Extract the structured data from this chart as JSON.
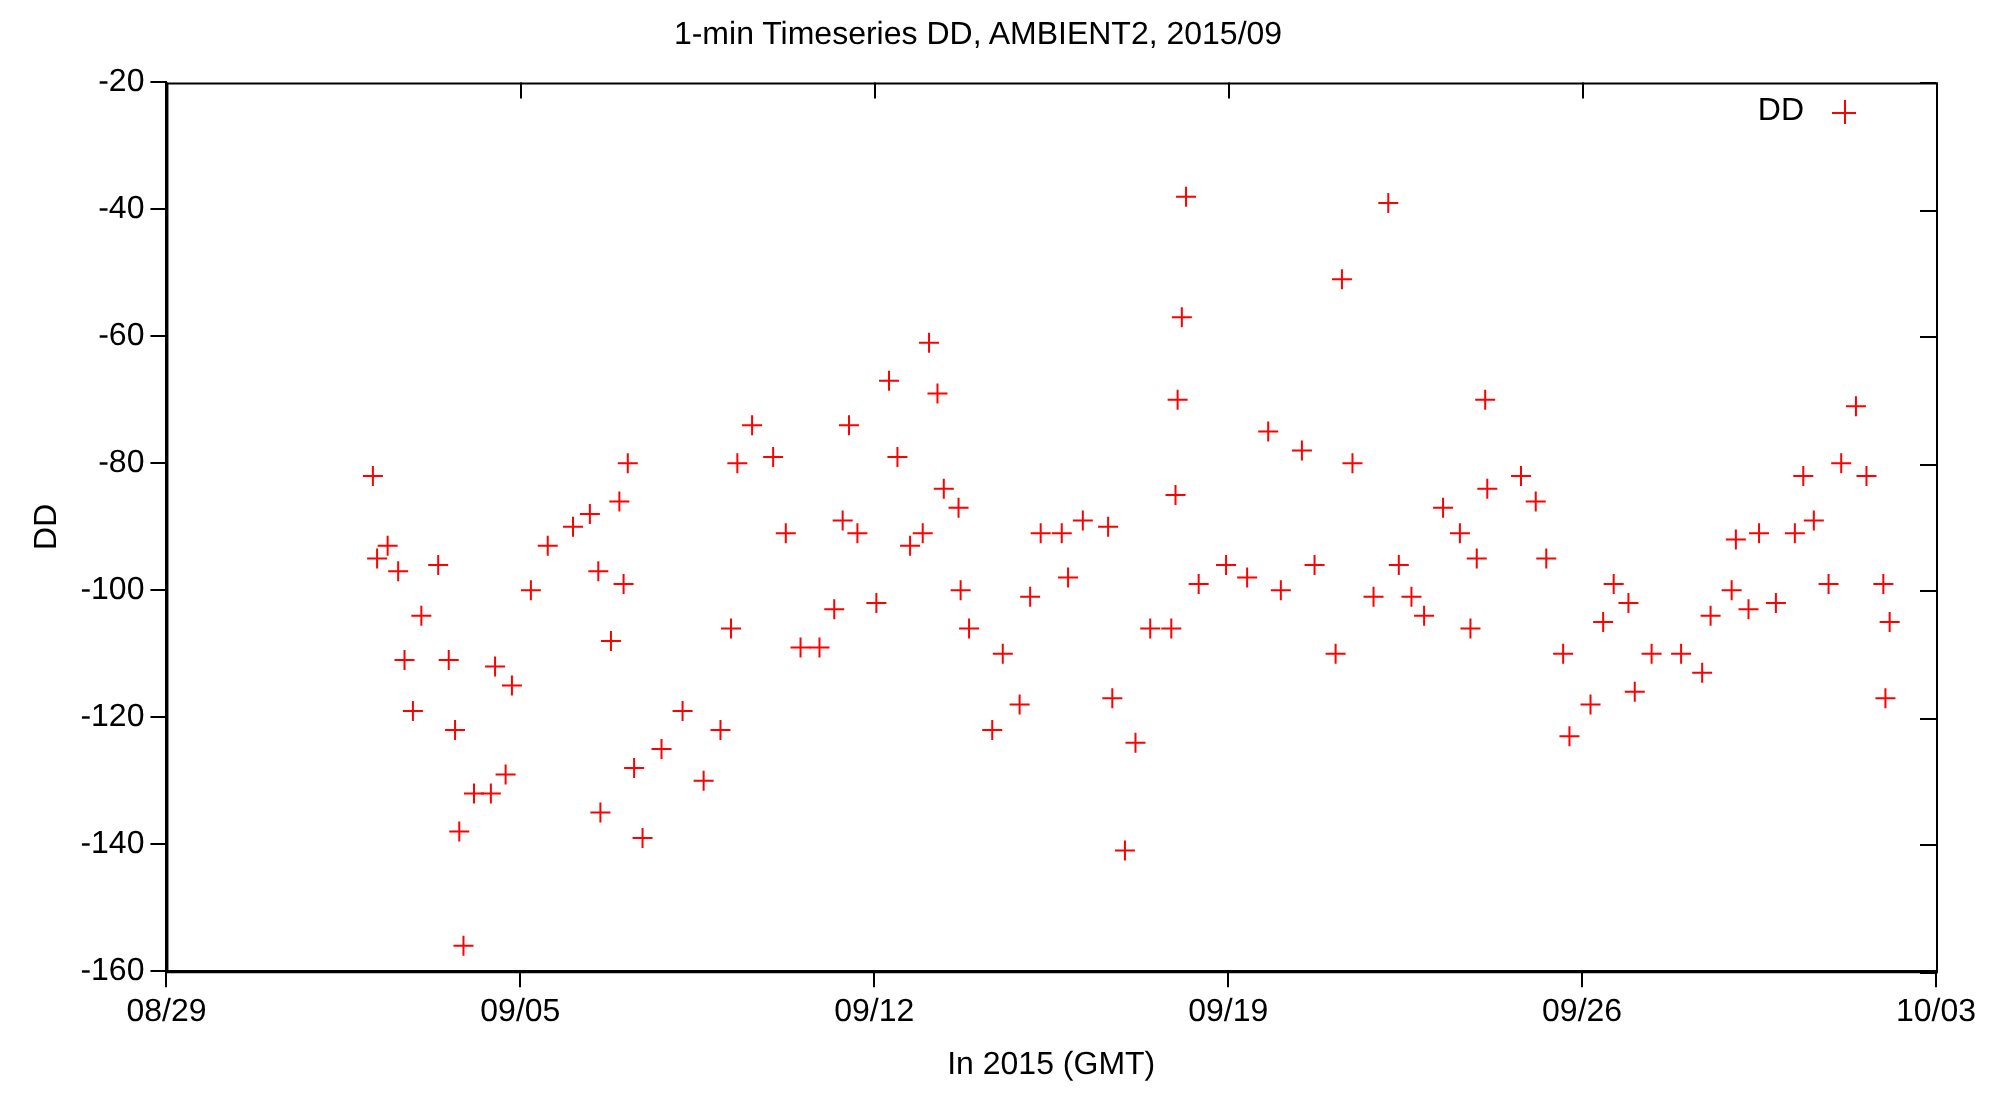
{
  "chart_data": {
    "type": "scatter",
    "title": "1-min Timeseries DD, AMBIENT2, 2015/09",
    "xlabel": "In 2015 (GMT)",
    "ylabel": "DD",
    "xlim": [
      "2015-08-29",
      "2015-10-03"
    ],
    "xticks": [
      {
        "value": "2015-08-29",
        "label": "08/29"
      },
      {
        "value": "2015-09-05",
        "label": "09/05"
      },
      {
        "value": "2015-09-12",
        "label": "09/12"
      },
      {
        "value": "2015-09-19",
        "label": "09/19"
      },
      {
        "value": "2015-09-26",
        "label": "09/26"
      },
      {
        "value": "2015-10-03",
        "label": "10/03"
      }
    ],
    "ylim": [
      -160,
      -20
    ],
    "yticks": [
      -160,
      -140,
      -120,
      -100,
      -80,
      -60,
      -40,
      -20
    ],
    "grid": false,
    "legend": "top right",
    "marker": "cross",
    "series": [
      {
        "name": "DD",
        "color": "#ff0000",
        "x": [
          "2015-09-02T02:00",
          "2015-09-02T04:00",
          "2015-09-02T09:00",
          "2015-09-02T14:00",
          "2015-09-02T17:00",
          "2015-09-02T21:00",
          "2015-09-03T01:00",
          "2015-09-03T09:00",
          "2015-09-03T14:00",
          "2015-09-03T17:00",
          "2015-09-03T19:00",
          "2015-09-03T21:00",
          "2015-09-04T02:00",
          "2015-09-04T10:00",
          "2015-09-04T12:00",
          "2015-09-04T17:00",
          "2015-09-04T20:00",
          "2015-09-05T05:00",
          "2015-09-05T13:00",
          "2015-09-06T01:00",
          "2015-09-06T09:00",
          "2015-09-06T13:00",
          "2015-09-06T14:00",
          "2015-09-06T19:00",
          "2015-09-06T23:00",
          "2015-09-07T01:00",
          "2015-09-07T03:00",
          "2015-09-07T06:00",
          "2015-09-07T10:00",
          "2015-09-07T19:00",
          "2015-09-08T05:00",
          "2015-09-08T15:00",
          "2015-09-08T23:00",
          "2015-09-09T04:00",
          "2015-09-09T07:00",
          "2015-09-09T14:00",
          "2015-09-10T00:00",
          "2015-09-10T06:00",
          "2015-09-10T13:00",
          "2015-09-10T22:00",
          "2015-09-11T05:00",
          "2015-09-11T09:00",
          "2015-09-11T12:00",
          "2015-09-11T16:00",
          "2015-09-12T01:00",
          "2015-09-12T07:00",
          "2015-09-12T11:00",
          "2015-09-12T17:00",
          "2015-09-12T23:00",
          "2015-09-13T02:00",
          "2015-09-13T06:00",
          "2015-09-13T09:00",
          "2015-09-13T16:00",
          "2015-09-13T17:00",
          "2015-09-13T21:00",
          "2015-09-14T08:00",
          "2015-09-14T13:00",
          "2015-09-14T21:00",
          "2015-09-15T02:00",
          "2015-09-15T07:00",
          "2015-09-15T17:00",
          "2015-09-15T20:00",
          "2015-09-16T03:00",
          "2015-09-16T15:00",
          "2015-09-16T17:00",
          "2015-09-16T23:00",
          "2015-09-17T04:00",
          "2015-09-17T11:00",
          "2015-09-17T21:00",
          "2015-09-17T23:00",
          "2015-09-18T00:00",
          "2015-09-18T02:00",
          "2015-09-18T04:00",
          "2015-09-18T10:00",
          "2015-09-18T23:00",
          "2015-09-19T09:00",
          "2015-09-19T19:00",
          "2015-09-20T01:00",
          "2015-09-20T11:00",
          "2015-09-20T17:00",
          "2015-09-21T03:00",
          "2015-09-21T06:00",
          "2015-09-21T11:00",
          "2015-09-21T21:00",
          "2015-09-22T04:00",
          "2015-09-22T09:00",
          "2015-09-22T15:00",
          "2015-09-22T21:00",
          "2015-09-23T06:00",
          "2015-09-23T14:00",
          "2015-09-23T19:00",
          "2015-09-23T22:00",
          "2015-09-24T02:00",
          "2015-09-24T03:00",
          "2015-09-24T19:00",
          "2015-09-25T02:00",
          "2015-09-25T07:00",
          "2015-09-25T15:00",
          "2015-09-25T18:00",
          "2015-09-26T04:00",
          "2015-09-26T10:00",
          "2015-09-26T15:00",
          "2015-09-26T22:00",
          "2015-09-27T01:00",
          "2015-09-27T09:00",
          "2015-09-27T23:00",
          "2015-09-28T09:00",
          "2015-09-28T13:00",
          "2015-09-28T23:00",
          "2015-09-29T01:00",
          "2015-09-29T07:00",
          "2015-09-29T12:00",
          "2015-09-29T20:00",
          "2015-09-30T05:00",
          "2015-09-30T09:00",
          "2015-09-30T14:00",
          "2015-09-30T21:00",
          "2015-10-01T03:00",
          "2015-10-01T10:00",
          "2015-10-01T15:00",
          "2015-10-01T23:00",
          "2015-10-02T00:00",
          "2015-10-02T02:00"
        ],
        "values": [
          -82,
          -95,
          -93,
          -97,
          -111,
          -119,
          -104,
          -96,
          -111,
          -122,
          -138,
          -156,
          -132,
          -132,
          -112,
          -129,
          -115,
          -100,
          -93,
          -90,
          -88,
          -97,
          -135,
          -108,
          -86,
          -99,
          -80,
          -128,
          -139,
          -125,
          -119,
          -130,
          -122,
          -106,
          -80,
          -74,
          -79,
          -91,
          -109,
          -109,
          -103,
          -89,
          -74,
          -91,
          -102,
          -67,
          -79,
          -93,
          -91,
          -61,
          -69,
          -84,
          -87,
          -100,
          -106,
          -122,
          -110,
          -118,
          -101,
          -91,
          -91,
          -98,
          -89,
          -90,
          -117,
          -141,
          -124,
          -106,
          -106,
          -85,
          -70,
          -57,
          -38,
          -99,
          -96,
          -98,
          -75,
          -100,
          -78,
          -96,
          -110,
          -51,
          -80,
          -101,
          -39,
          -96,
          -101,
          -104,
          -87,
          -91,
          -106,
          -95,
          -70,
          -84,
          -82,
          -86,
          -95,
          -110,
          -123,
          -118,
          -105,
          -99,
          -102,
          -116,
          -110,
          -110,
          -113,
          -104,
          -100,
          -92,
          -103,
          -91,
          -102,
          -91,
          -82,
          -89,
          -99,
          -80,
          -71,
          -82,
          -99,
          -117,
          -105
        ]
      }
    ]
  }
}
